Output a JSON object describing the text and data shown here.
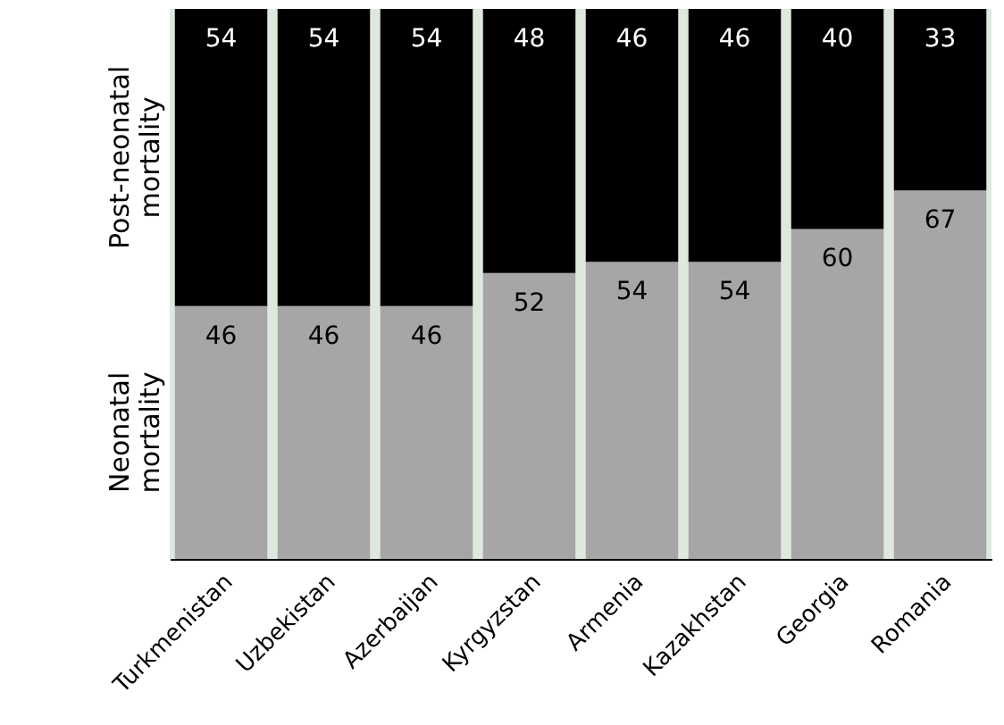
{
  "chart_data": {
    "type": "bar",
    "stacked": true,
    "data_labels": true,
    "grid": false,
    "categories": [
      "Turkmenistan",
      "Uzbekistan",
      "Azerbaijan",
      "Kyrgyzstan",
      "Armenia",
      "Kazakhstan",
      "Georgia",
      "Romania"
    ],
    "series": [
      {
        "name": "Neonatal mortality",
        "color": "#a6a6a6",
        "values": [
          46,
          46,
          46,
          52,
          54,
          54,
          60,
          67
        ]
      },
      {
        "name": "Post-neonatal mortality",
        "color": "#000000",
        "values": [
          54,
          54,
          54,
          48,
          46,
          46,
          40,
          33
        ]
      }
    ]
  }
}
